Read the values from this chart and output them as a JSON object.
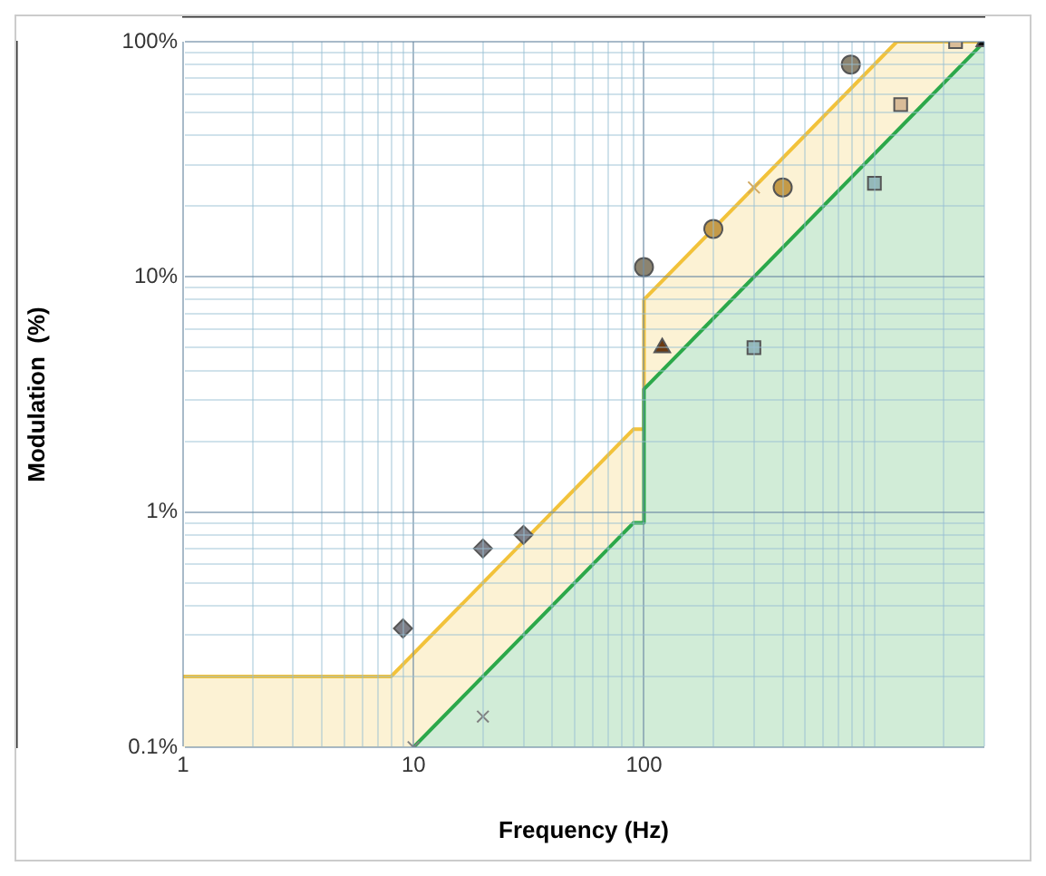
{
  "chart_data": {
    "type": "scatter",
    "xlabel": "Frequency (Hz)",
    "ylabel": "Modulation  (%)",
    "log": "xy",
    "grid": true,
    "legend": false,
    "xlim": [
      1,
      3000
    ],
    "ylim": [
      0.1,
      100
    ],
    "xticks": [
      1,
      {
        "value": 2,
        "label": null
      },
      {
        "value": 3,
        "label": null
      },
      {
        "value": 4,
        "label": null
      },
      {
        "value": 5,
        "label": null
      },
      {
        "value": 6,
        "label": null
      },
      {
        "value": 7,
        "label": null
      },
      {
        "value": 8,
        "label": null
      },
      {
        "value": 9,
        "label": null
      },
      10,
      {
        "value": 20,
        "label": null
      },
      {
        "value": 30,
        "label": null
      },
      {
        "value": 40,
        "label": null
      },
      {
        "value": 50,
        "label": null
      },
      {
        "value": 60,
        "label": null
      },
      {
        "value": 70,
        "label": null
      },
      {
        "value": 80,
        "label": null
      },
      {
        "value": 90,
        "label": null
      },
      100,
      {
        "value": 200,
        "label": null
      },
      {
        "value": 300,
        "label": null
      },
      {
        "value": 400,
        "label": null
      },
      {
        "value": 500,
        "label": null
      },
      {
        "value": 600,
        "label": null
      },
      {
        "value": 700,
        "label": null
      },
      {
        "value": 800,
        "label": null
      },
      {
        "value": 900,
        "label": null
      },
      {
        "value": 1000,
        "label": null
      },
      {
        "value": 2000,
        "label": null
      },
      {
        "value": 3000,
        "label": null
      }
    ],
    "yticks": [
      {
        "value": 0.1,
        "label": "0.1%"
      },
      {
        "value": 0.2,
        "label": null
      },
      {
        "value": 0.3,
        "label": null
      },
      {
        "value": 0.4,
        "label": null
      },
      {
        "value": 0.5,
        "label": null
      },
      {
        "value": 0.6,
        "label": null
      },
      {
        "value": 0.7,
        "label": null
      },
      {
        "value": 0.8,
        "label": null
      },
      {
        "value": 0.9,
        "label": null
      },
      {
        "value": 1,
        "label": "1%"
      },
      {
        "value": 2,
        "label": null
      },
      {
        "value": 3,
        "label": null
      },
      {
        "value": 4,
        "label": null
      },
      {
        "value": 5,
        "label": null
      },
      {
        "value": 6,
        "label": null
      },
      {
        "value": 7,
        "label": null
      },
      {
        "value": 8,
        "label": null
      },
      {
        "value": 9,
        "label": null
      },
      {
        "value": 10,
        "label": "10%"
      },
      {
        "value": 20,
        "label": null
      },
      {
        "value": 30,
        "label": null
      },
      {
        "value": 40,
        "label": null
      },
      {
        "value": 50,
        "label": null
      },
      {
        "value": 60,
        "label": null
      },
      {
        "value": 70,
        "label": null
      },
      {
        "value": 80,
        "label": null
      },
      {
        "value": 90,
        "label": null
      },
      {
        "value": 100,
        "label": "100%"
      }
    ],
    "series": [
      {
        "type": "area",
        "color": "#f2c23a",
        "marker": "none",
        "x": [
          1,
          8,
          90,
          100,
          100,
          1250,
          3000
        ],
        "values": [
          0.2,
          0.2,
          2.25,
          2.25,
          8,
          100,
          100
        ]
      },
      {
        "type": "area",
        "color": "#2ca84a",
        "marker": "none",
        "x": [
          10,
          90,
          100,
          100,
          3000
        ],
        "values": [
          0.1,
          0.9,
          0.9,
          3.33,
          100
        ]
      },
      {
        "color": "#8c8470",
        "marker": "circle",
        "x": [
          100,
          790
        ],
        "values": [
          11,
          80
        ]
      },
      {
        "color": "#c49a48",
        "marker": "circle",
        "x": [
          200,
          400
        ],
        "values": [
          16,
          24
        ]
      },
      {
        "color": "#d0a860",
        "marker": "cross",
        "x": [
          300
        ],
        "values": [
          24
        ]
      },
      {
        "color": "#808080",
        "marker": "cross",
        "x": [
          10,
          20
        ],
        "values": [
          0.1,
          0.135
        ]
      },
      {
        "color": "#7d7d85",
        "marker": "diamond",
        "x": [
          9,
          20,
          30
        ],
        "values": [
          0.32,
          0.7,
          0.8
        ]
      },
      {
        "color": "#6b3a10",
        "marker": "triangle",
        "x": [
          120
        ],
        "values": [
          5
        ]
      },
      {
        "color": "#d9bc98",
        "marker": "square",
        "x": [
          1300,
          2250
        ],
        "values": [
          54,
          100
        ]
      },
      {
        "color": "#94b8b8",
        "marker": "square",
        "x": [
          300,
          1000
        ],
        "values": [
          5,
          25
        ]
      },
      {
        "color": "#111111",
        "marker": "triangle",
        "x": [
          3000
        ],
        "values": [
          100
        ]
      }
    ]
  }
}
